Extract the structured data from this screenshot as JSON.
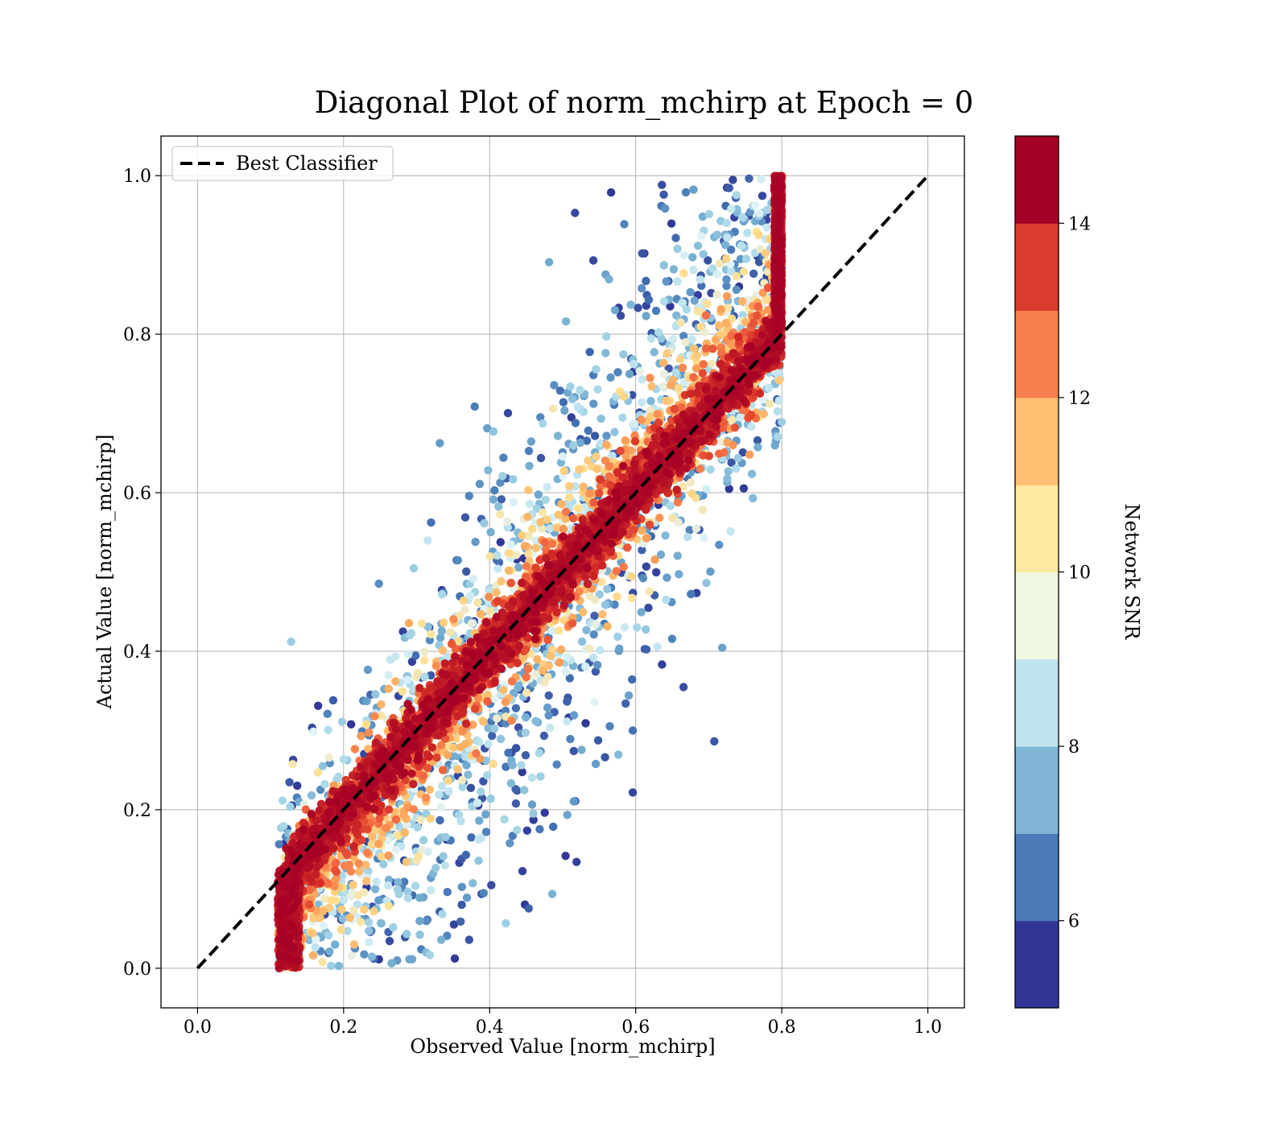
{
  "chart_data": {
    "type": "scatter",
    "title": "Diagonal Plot of norm_mchirp at Epoch = 0",
    "xlabel": "Observed Value [norm_mchirp]",
    "ylabel": "Actual Value [norm_mchirp]",
    "xlim": [
      -0.05,
      1.05
    ],
    "ylim": [
      -0.05,
      1.05
    ],
    "xticks": [
      "0.0",
      "0.2",
      "0.4",
      "0.6",
      "0.8",
      "1.0"
    ],
    "yticks": [
      "0.0",
      "0.2",
      "0.4",
      "0.6",
      "0.8",
      "1.0"
    ],
    "grid": true,
    "legend": {
      "position": "top-left",
      "label": "Best Classifier"
    },
    "reference_line": {
      "name": "Best Classifier",
      "style": "dashed",
      "color": "#000000",
      "x": [
        0,
        1
      ],
      "y": [
        0,
        1
      ]
    },
    "colorbar": {
      "label": "Network SNR",
      "range": [
        5,
        15
      ],
      "ticks": [
        "6",
        "8",
        "10",
        "12",
        "14"
      ],
      "colormap": [
        "#313695",
        "#4575b4",
        "#74add1",
        "#abd9e9",
        "#e0f3f8",
        "#fee090",
        "#fdae61",
        "#f46d43",
        "#d73027",
        "#a50026"
      ],
      "colors_bottom_to_top": [
        "#313695",
        "#4a7ab7",
        "#80b5d6",
        "#bfe2ec",
        "#eef7e0",
        "#feeaa1",
        "#fdbf71",
        "#f57f4f",
        "#da3b2d",
        "#a50026"
      ]
    },
    "scatter_description": {
      "point_count_approx": 30000,
      "x_range": [
        0.12,
        0.8
      ],
      "y_range": [
        0.0,
        1.0
      ],
      "high_snr_trend": "points with SNR >= 14 lie tightly along y = x",
      "low_snr_trend": "low-SNR points scatter above the diagonal at high y and below it at low y"
    }
  }
}
